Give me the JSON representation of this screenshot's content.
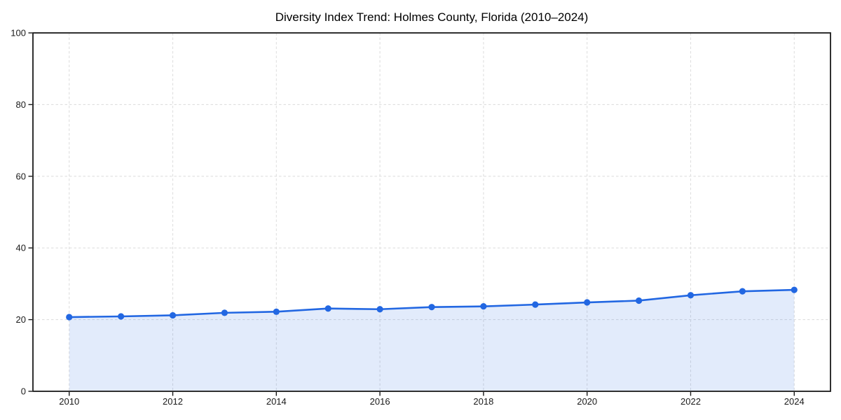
{
  "page": {
    "background": "#ffffff"
  },
  "chart_data": {
    "type": "area",
    "title": "Diversity Index Trend: Holmes County, Florida (2010–2024)",
    "x": [
      2010,
      2011,
      2012,
      2013,
      2014,
      2015,
      2016,
      2017,
      2018,
      2019,
      2020,
      2021,
      2022,
      2023,
      2024
    ],
    "series": [
      {
        "name": "Diversity Index",
        "values": [
          20.7,
          20.9,
          21.2,
          21.9,
          22.2,
          23.1,
          22.9,
          23.5,
          23.7,
          24.2,
          24.8,
          25.3,
          26.8,
          27.9,
          28.3
        ]
      }
    ],
    "xlabel": "",
    "ylabel": "",
    "xticks": [
      2010,
      2012,
      2014,
      2016,
      2018,
      2020,
      2022,
      2024
    ],
    "yticks": [
      0,
      20,
      40,
      60,
      80,
      100
    ],
    "ylim": [
      0,
      100
    ],
    "x_margin_years": 0.7,
    "grid": "dashed",
    "legend": false,
    "marker_style": "circle",
    "colors": {
      "line": "#2267e2",
      "marker": "#2267e2",
      "fill": "rgba(34,103,226,0.13)",
      "gridline": "#dfdfdf",
      "frame": "#1a1a1a",
      "tick": "#1a1a1a",
      "title_text": "#000000",
      "background": "#ffffff"
    }
  }
}
